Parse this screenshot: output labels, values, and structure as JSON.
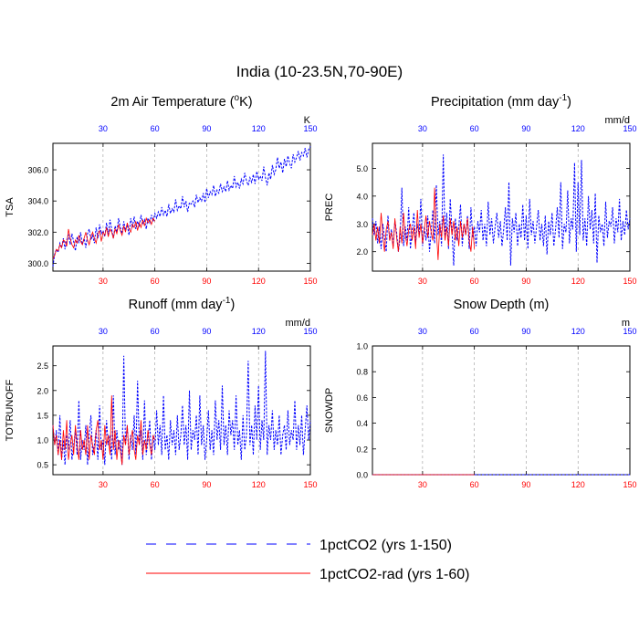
{
  "figure": {
    "title": "India (10-23.5N,70-90E)"
  },
  "legend": {
    "entries": [
      {
        "label": "1pctCO2 (yrs 1-150)",
        "color": "#0000ff",
        "style": "dashed"
      },
      {
        "label": "1pctCO2-rad (yrs 1-60)",
        "color": "#ff0000",
        "style": "solid"
      }
    ]
  },
  "colors": {
    "series_1pctCO2": "#0000ff",
    "series_1pctCO2_rad": "#ff0000",
    "top_ticks": "#0000ff",
    "bottom_ticks": "#ff0000"
  },
  "chart_data": [
    {
      "type": "line",
      "title_main": "2m Air Temperature (",
      "title_sup1": "o",
      "title_end": "K)",
      "ylabel": "TSA",
      "units": "K",
      "xlim": [
        1,
        150
      ],
      "ylim": [
        299.5,
        307.7
      ],
      "yticks": [
        "300.0",
        "302.0",
        "304.0",
        "306.0"
      ],
      "ytick_values": [
        300,
        302,
        304,
        306
      ],
      "xticks": [
        30,
        60,
        90,
        120,
        150
      ],
      "bottom_ticks": [
        "30",
        "60",
        "90",
        "120",
        "150"
      ],
      "top_ticks": [
        "30",
        "60",
        "90",
        "120",
        "150"
      ],
      "grid": "vertical-dashed",
      "series": [
        {
          "name": "1pctCO2 (yrs 1-150)",
          "x_start": 1,
          "values": [
            299.8,
            300.6,
            300.9,
            300.7,
            301.3,
            301.0,
            301.6,
            300.9,
            301.5,
            301.8,
            301.2,
            301.9,
            301.4,
            300.8,
            301.7,
            301.3,
            302.0,
            301.2,
            301.6,
            301.0,
            301.9,
            302.2,
            301.5,
            301.8,
            301.3,
            302.3,
            301.6,
            302.5,
            301.9,
            302.1,
            301.7,
            302.6,
            301.8,
            302.8,
            302.2,
            301.6,
            302.4,
            302.0,
            302.9,
            302.3,
            301.9,
            302.7,
            302.1,
            302.5,
            301.8,
            302.9,
            302.3,
            303.0,
            302.2,
            302.7,
            302.4,
            303.1,
            302.5,
            302.8,
            302.2,
            302.9,
            302.6,
            303.1,
            302.7,
            303.2,
            302.9,
            303.3,
            303.0,
            303.6,
            303.1,
            303.4,
            303.0,
            303.8,
            303.2,
            303.5,
            303.3,
            304.1,
            303.4,
            303.7,
            303.5,
            304.3,
            303.6,
            304.0,
            303.3,
            303.9,
            303.8,
            304.0,
            303.6,
            304.4,
            303.9,
            304.2,
            304.0,
            304.5,
            303.9,
            304.8,
            304.2,
            304.6,
            304.4,
            305.0,
            304.3,
            304.7,
            304.5,
            305.1,
            304.6,
            304.9,
            304.6,
            305.3,
            304.7,
            305.0,
            304.8,
            305.6,
            304.9,
            305.2,
            304.8,
            305.4,
            305.1,
            305.8,
            305.3,
            305.0,
            305.5,
            305.2,
            305.7,
            305.1,
            305.9,
            305.4,
            305.6,
            305.3,
            306.2,
            305.5,
            305.0,
            305.8,
            305.4,
            306.3,
            305.7,
            306.0,
            306.8,
            306.1,
            306.5,
            305.8,
            306.7,
            306.2,
            306.9,
            306.4,
            306.1,
            307.0,
            306.5,
            306.8,
            307.2,
            306.6,
            307.1,
            306.9,
            307.4,
            306.8,
            307.3,
            307.5
          ]
        },
        {
          "name": "1pctCO2-rad (yrs 1-60)",
          "x_start": 1,
          "values": [
            300.3,
            300.5,
            300.9,
            300.8,
            301.2,
            301.0,
            301.5,
            301.4,
            301.1,
            302.2,
            301.6,
            301.2,
            301.0,
            301.5,
            301.3,
            301.8,
            301.4,
            301.2,
            301.6,
            302.0,
            301.5,
            301.2,
            301.7,
            302.0,
            301.6,
            301.3,
            301.9,
            302.1,
            301.4,
            302.0,
            301.8,
            302.3,
            301.7,
            302.2,
            302.0,
            301.6,
            302.2,
            301.9,
            302.5,
            302.1,
            301.8,
            302.4,
            302.0,
            302.6,
            302.2,
            302.0,
            302.5,
            302.3,
            302.7,
            302.1,
            302.6,
            302.3,
            302.8,
            302.4,
            302.9,
            302.6,
            302.8,
            302.5,
            302.9,
            302.7
          ]
        }
      ]
    },
    {
      "type": "line",
      "title_main": "Precipitation (mm day",
      "title_sup1": "-1",
      "title_end": ")",
      "ylabel": "PREC",
      "units": "mm/d",
      "xlim": [
        1,
        150
      ],
      "ylim": [
        1.3,
        5.9
      ],
      "yticks": [
        "2.0",
        "3.0",
        "4.0",
        "5.0"
      ],
      "ytick_values": [
        2,
        3,
        4,
        5
      ],
      "xticks": [
        30,
        60,
        90,
        120,
        150
      ],
      "bottom_ticks": [
        "30",
        "60",
        "90",
        "120",
        "150"
      ],
      "top_ticks": [
        "30",
        "60",
        "90",
        "120",
        "150"
      ],
      "grid": "vertical-dashed",
      "series": [
        {
          "name": "1pctCO2 (yrs 1-150)",
          "x_start": 1,
          "values": [
            3.2,
            2.6,
            3.1,
            2.3,
            2.9,
            2.1,
            3.0,
            2.5,
            2.0,
            3.3,
            2.4,
            2.8,
            2.2,
            3.1,
            2.7,
            2.0,
            2.5,
            4.3,
            2.2,
            2.9,
            2.4,
            3.6,
            2.1,
            2.8,
            3.4,
            2.3,
            3.0,
            2.6,
            3.9,
            2.2,
            2.9,
            2.4,
            3.3,
            2.0,
            2.7,
            3.5,
            2.3,
            4.4,
            2.6,
            3.1,
            2.2,
            5.5,
            2.5,
            3.4,
            2.1,
            3.9,
            2.8,
            1.5,
            3.2,
            2.4,
            2.9,
            3.7,
            2.2,
            3.0,
            2.6,
            3.3,
            2.1,
            3.6,
            2.5,
            2.9,
            2.2,
            3.1,
            2.7,
            3.5,
            2.4,
            3.0,
            2.2,
            3.8,
            2.6,
            3.2,
            2.3,
            2.9,
            3.4,
            2.5,
            3.1,
            2.2,
            2.8,
            3.6,
            2.4,
            4.5,
            1.5,
            3.2,
            2.7,
            3.4,
            2.2,
            3.0,
            2.5,
            3.7,
            2.4,
            3.3,
            2.1,
            3.9,
            2.6,
            3.1,
            2.3,
            2.9,
            3.5,
            2.4,
            3.0,
            2.2,
            3.3,
            1.9,
            3.1,
            2.6,
            3.4,
            2.2,
            2.8,
            3.6,
            2.5,
            4.5,
            2.1,
            3.0,
            2.7,
            4.2,
            2.3,
            3.2,
            2.8,
            5.2,
            2.0,
            4.5,
            2.6,
            5.3,
            2.4,
            3.2,
            2.2,
            4.0,
            2.8,
            3.5,
            2.3,
            4.1,
            1.6,
            3.3,
            2.7,
            3.0,
            2.2,
            3.8,
            2.5,
            3.1,
            2.9,
            3.6,
            2.3,
            3.2,
            2.7,
            3.9,
            2.4,
            3.1,
            2.6,
            3.5,
            2.8,
            3.2
          ]
        },
        {
          "name": "1pctCO2-rad (yrs 1-60)",
          "x_start": 1,
          "values": [
            2.6,
            3.0,
            2.4,
            2.9,
            2.3,
            3.4,
            2.6,
            2.0,
            2.8,
            3.1,
            2.4,
            2.7,
            2.1,
            3.2,
            2.5,
            2.0,
            2.9,
            2.3,
            3.4,
            2.6,
            2.2,
            2.8,
            3.0,
            2.4,
            2.9,
            2.1,
            3.5,
            2.5,
            3.0,
            2.3,
            2.8,
            3.3,
            2.5,
            3.1,
            2.7,
            2.4,
            4.3,
            2.8,
            1.7,
            3.0,
            2.5,
            3.3,
            2.4,
            2.9,
            2.2,
            3.2,
            2.6,
            3.1,
            2.4,
            2.9,
            2.2,
            3.1,
            2.5,
            3.0,
            2.6,
            3.2,
            2.4,
            2.0,
            2.9,
            2.1
          ]
        }
      ]
    },
    {
      "type": "line",
      "title_main": "Runoff (mm day",
      "title_sup1": "-1",
      "title_end": ")",
      "ylabel": "TOTRUNOFF",
      "units": "mm/d",
      "xlim": [
        1,
        150
      ],
      "ylim": [
        0.3,
        2.9
      ],
      "yticks": [
        "0.5",
        "1.0",
        "1.5",
        "2.0",
        "2.5"
      ],
      "ytick_values": [
        0.5,
        1.0,
        1.5,
        2.0,
        2.5
      ],
      "xticks": [
        30,
        60,
        90,
        120,
        150
      ],
      "bottom_ticks": [
        "30",
        "60",
        "90",
        "120",
        "150"
      ],
      "top_ticks": [
        "30",
        "60",
        "90",
        "120",
        "150"
      ],
      "grid": "vertical-dashed",
      "series": [
        {
          "name": "1pctCO2 (yrs 1-150)",
          "x_start": 1,
          "values": [
            1.3,
            0.9,
            1.2,
            0.7,
            1.5,
            0.6,
            1.0,
            0.5,
            1.1,
            0.8,
            1.4,
            0.6,
            0.9,
            1.2,
            0.7,
            1.8,
            0.6,
            1.0,
            0.8,
            1.3,
            0.5,
            1.1,
            1.5,
            0.7,
            0.9,
            1.2,
            0.6,
            1.7,
            0.8,
            1.0,
            0.5,
            1.4,
            0.9,
            1.1,
            0.6,
            1.9,
            0.7,
            1.2,
            0.8,
            1.0,
            0.5,
            2.7,
            0.9,
            1.3,
            0.6,
            1.1,
            0.8,
            1.5,
            0.7,
            2.2,
            0.9,
            1.2,
            0.6,
            1.8,
            0.7,
            1.0,
            1.4,
            0.6,
            1.1,
            0.8,
            1.6,
            0.9,
            1.3,
            0.7,
            1.9,
            0.8,
            1.1,
            0.6,
            1.4,
            0.9,
            1.2,
            0.7,
            1.5,
            0.8,
            1.1,
            1.7,
            0.9,
            1.3,
            0.6,
            2.0,
            0.8,
            1.2,
            1.0,
            1.5,
            0.7,
            1.9,
            0.9,
            1.3,
            0.6,
            1.0,
            1.6,
            0.8,
            1.2,
            0.7,
            1.8,
            1.0,
            1.4,
            0.8,
            2.1,
            0.9,
            1.3,
            0.7,
            1.6,
            1.1,
            1.4,
            0.8,
            1.9,
            0.9,
            1.2,
            0.6,
            1.5,
            0.8,
            1.1,
            2.6,
            0.9,
            1.3,
            0.7,
            1.7,
            1.0,
            2.1,
            0.8,
            1.4,
            1.0,
            2.8,
            0.7,
            1.3,
            1.0,
            1.6,
            0.8,
            1.2,
            0.9,
            1.5,
            0.7,
            1.1,
            1.3,
            0.8,
            1.6,
            0.9,
            1.2,
            1.0,
            1.8,
            0.8,
            1.3,
            0.9,
            1.5,
            0.7,
            1.2,
            1.7,
            1.0,
            1.4
          ]
        },
        {
          "name": "1pctCO2-rad (yrs 1-60)",
          "x_start": 1,
          "values": [
            1.3,
            0.9,
            1.1,
            0.7,
            1.0,
            0.6,
            1.2,
            0.8,
            1.4,
            0.6,
            0.9,
            1.1,
            0.7,
            1.3,
            0.9,
            0.6,
            1.2,
            0.8,
            1.0,
            0.7,
            1.3,
            0.6,
            1.1,
            0.9,
            0.7,
            1.2,
            1.4,
            0.8,
            1.0,
            0.6,
            1.3,
            0.9,
            1.1,
            0.7,
            1.9,
            0.8,
            1.2,
            0.6,
            1.0,
            0.8,
            0.5,
            1.1,
            0.9,
            1.3,
            0.7,
            1.0,
            1.2,
            0.8,
            0.6,
            1.1,
            0.9,
            1.4,
            0.7,
            1.0,
            0.8,
            1.2,
            0.9,
            0.7,
            1.1,
            1.0
          ]
        }
      ]
    },
    {
      "type": "line",
      "title_main": "Snow Depth (m)",
      "title_sup1": "",
      "title_end": "",
      "ylabel": "SNOWDP",
      "units": "m",
      "xlim": [
        1,
        150
      ],
      "ylim": [
        0,
        1.0
      ],
      "yticks": [
        "0.0",
        "0.2",
        "0.4",
        "0.6",
        "0.8",
        "1.0"
      ],
      "ytick_values": [
        0,
        0.2,
        0.4,
        0.6,
        0.8,
        1.0
      ],
      "xticks": [
        30,
        60,
        90,
        120,
        150
      ],
      "bottom_ticks": [
        "30",
        "60",
        "90",
        "120",
        "150"
      ],
      "top_ticks": [
        "30",
        "60",
        "90",
        "120",
        "150"
      ],
      "grid": "vertical-dashed",
      "series": [
        {
          "name": "1pctCO2 (yrs 1-150)",
          "x_start": 1,
          "constant": 0,
          "count": 150
        },
        {
          "name": "1pctCO2-rad (yrs 1-60)",
          "x_start": 1,
          "constant": 0,
          "count": 60
        }
      ]
    }
  ]
}
